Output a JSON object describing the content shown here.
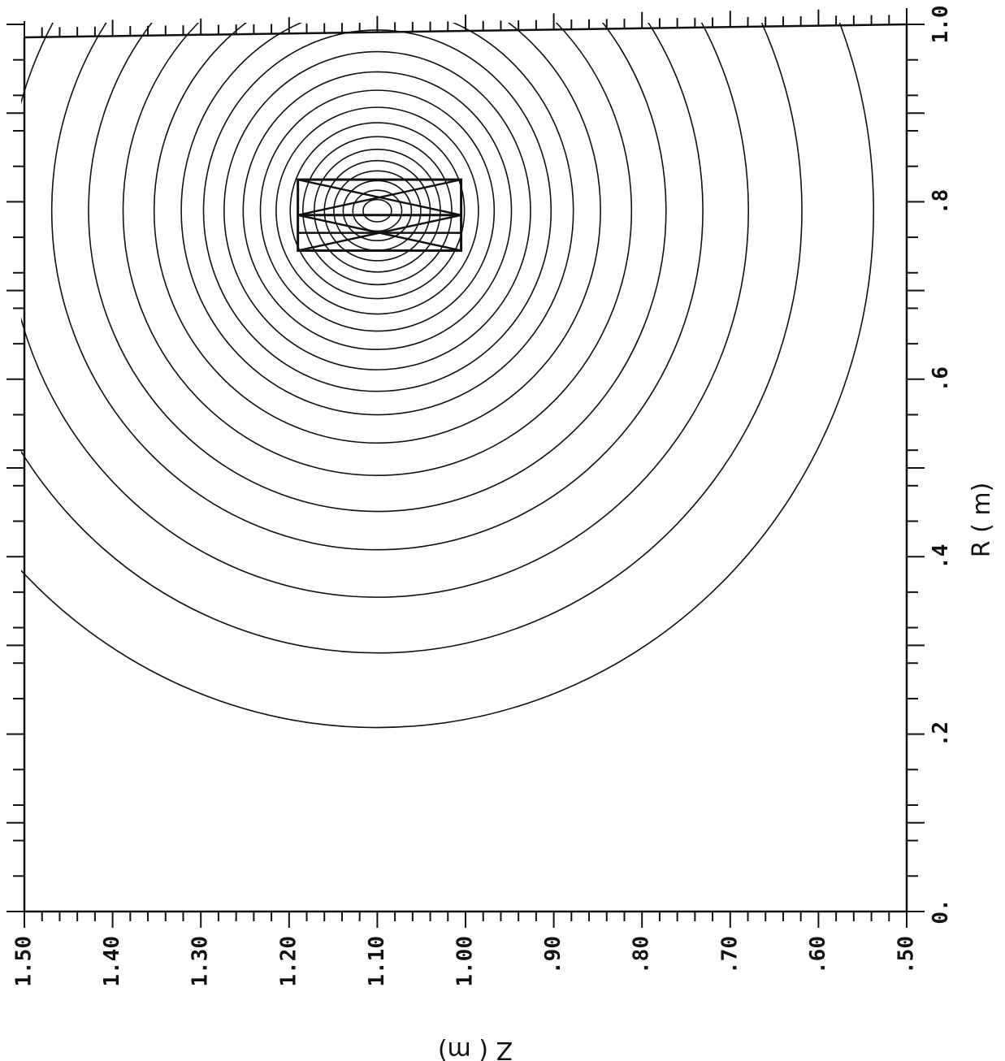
{
  "chart_data": {
    "type": "contour",
    "title": "",
    "xlabel": "Z ( m)",
    "ylabel": "R ( m)",
    "xlim": [
      1.5,
      0.5
    ],
    "ylim": [
      0.0,
      1.0
    ],
    "x_ticks": [
      1.5,
      1.4,
      1.3,
      1.2,
      1.1,
      1.0,
      0.9,
      0.8,
      0.7,
      0.6,
      0.5
    ],
    "x_tick_labels": [
      "1.50",
      "1.40",
      "1.30",
      "1.20",
      "1.10",
      "1.00",
      ".90",
      ".80",
      ".70",
      ".60",
      ".50"
    ],
    "y_ticks": [
      0.0,
      0.2,
      0.4,
      0.6,
      0.8,
      1.0
    ],
    "y_tick_labels": [
      "0.",
      ".2",
      ".4",
      ".6",
      ".8",
      "1.0"
    ],
    "contour_center": {
      "z": 1.1,
      "r": 0.79
    },
    "contour_levels_r_below_center": [
      0.2074,
      0.2915,
      0.3543,
      0.4078,
      0.451,
      0.4916,
      0.5281,
      0.56,
      0.5863,
      0.6107,
      0.6335,
      0.6543,
      0.6735,
      0.6908,
      0.7066,
      0.7209,
      0.7336,
      0.7451,
      0.7562,
      0.767,
      0.7775
    ],
    "coil": {
      "z_min": 1.005,
      "z_max": 1.19,
      "r_min": 0.745,
      "r_max": 0.825,
      "split_r": [
        0.785,
        0.765
      ]
    },
    "grid": false
  }
}
